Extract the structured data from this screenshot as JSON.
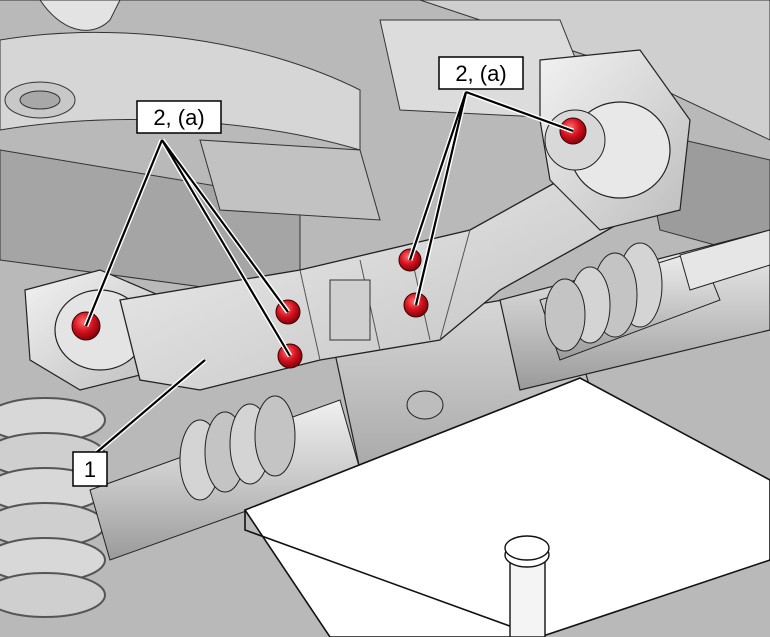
{
  "figure": {
    "callouts": [
      {
        "id": "bolt-callout-left",
        "label": "2, (a)"
      },
      {
        "id": "bolt-callout-right",
        "label": "2, (a)"
      },
      {
        "id": "part-callout",
        "label": "1"
      }
    ],
    "colors": {
      "highlight_bolt": "#cc0f1e",
      "metal_light": "#e6e6e6",
      "metal_mid": "#c4c4c4",
      "metal_dark": "#8e8e8e",
      "outline": "#1a1a1a"
    },
    "icons": [
      "bolt-icon",
      "crossmember-icon",
      "jack-stand-icon"
    ]
  }
}
